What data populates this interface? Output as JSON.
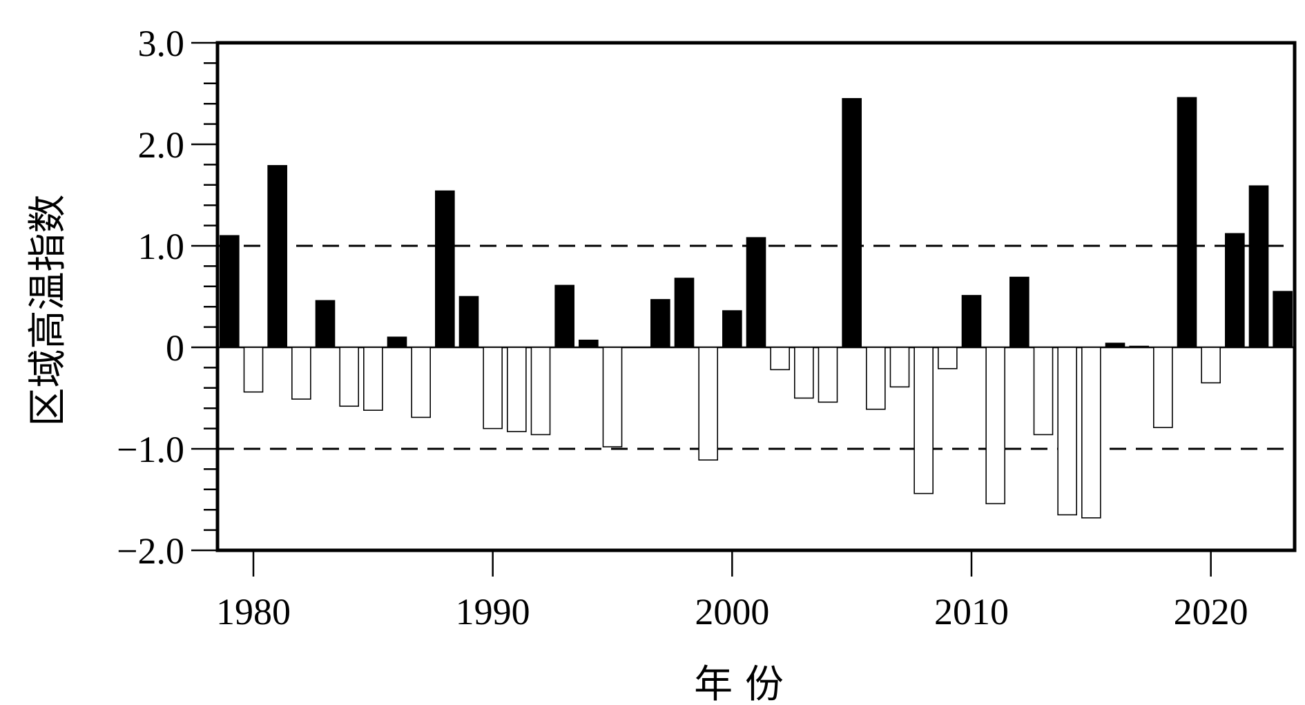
{
  "chart_data": {
    "type": "bar",
    "title": "",
    "xlabel": "年 份",
    "ylabel": "区域高温指数",
    "xlim": [
      1978.5,
      2023.5
    ],
    "ylim": [
      -2.0,
      3.0
    ],
    "x_ticks": [
      1980,
      1990,
      2000,
      2010,
      2020
    ],
    "x_tick_labels": [
      "1980",
      "1990",
      "2000",
      "2010",
      "2020"
    ],
    "y_ticks": [
      -2.0,
      -1.0,
      0,
      1.0,
      2.0,
      3.0
    ],
    "y_tick_labels": [
      "−2.0",
      "−1.0",
      "0",
      "1.0",
      "2.0",
      "3.0"
    ],
    "reference_lines": [
      1.0,
      -1.0
    ],
    "positive_color": "#000000",
    "negative_color": "#ffffff",
    "x": [
      1979,
      1980,
      1981,
      1982,
      1983,
      1984,
      1985,
      1986,
      1987,
      1988,
      1989,
      1990,
      1991,
      1992,
      1993,
      1994,
      1995,
      1996,
      1997,
      1998,
      1999,
      2000,
      2001,
      2002,
      2003,
      2004,
      2005,
      2006,
      2007,
      2008,
      2009,
      2010,
      2011,
      2012,
      2013,
      2014,
      2015,
      2016,
      2017,
      2018,
      2019,
      2020,
      2021,
      2022,
      2023
    ],
    "values": [
      1.1,
      -0.44,
      1.79,
      -0.51,
      0.46,
      -0.58,
      -0.62,
      0.1,
      -0.69,
      1.54,
      0.5,
      -0.8,
      -0.83,
      -0.86,
      0.61,
      0.07,
      -0.98,
      0.0,
      0.47,
      0.68,
      -1.11,
      0.36,
      1.08,
      -0.22,
      -0.5,
      -0.54,
      2.45,
      -0.61,
      -0.39,
      -1.44,
      -0.21,
      0.51,
      -1.54,
      0.69,
      -0.86,
      -1.65,
      -1.68,
      0.04,
      0.01,
      -0.79,
      2.46,
      -0.35,
      1.12,
      1.59,
      0.55
    ]
  }
}
